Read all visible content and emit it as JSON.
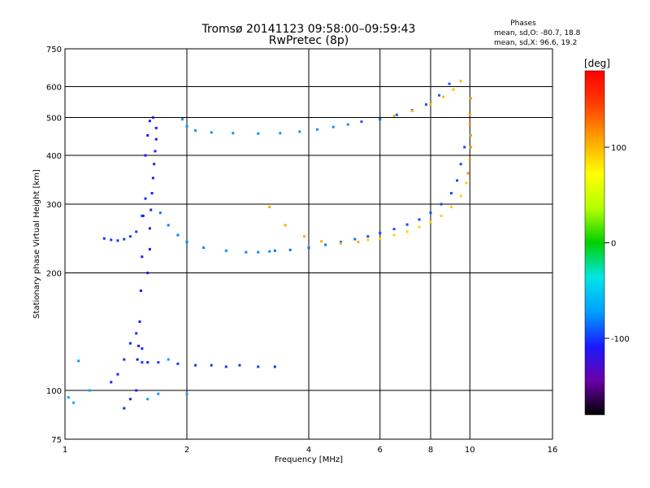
{
  "chart_data": {
    "type": "scatter",
    "title": "Tromsø 20141123 09:58:00–09:59:43",
    "subtitle": "RwPretec (8p)",
    "xlabel": "Frequency [MHz]",
    "ylabel": "Stationary phase Virtual Height [km]",
    "x_scale": "log",
    "y_scale": "log",
    "xlim": [
      1,
      16
    ],
    "ylim": [
      75,
      750
    ],
    "x_ticks": [
      1,
      2,
      4,
      6,
      8,
      10,
      16
    ],
    "y_ticks": [
      75,
      100,
      200,
      300,
      400,
      500,
      600,
      750
    ],
    "grid": true,
    "stats": {
      "header": "Phases",
      "line1": "mean, sd,O: -80.7, 18.8",
      "line2": "mean, sd,X:  96.6, 19.2"
    },
    "colorbar": {
      "label": "[deg]",
      "range": [
        -180,
        180
      ],
      "ticks": [
        100,
        0,
        -100
      ],
      "colors": [
        "#000000",
        "#6a00a8",
        "#1a1aff",
        "#00a0ff",
        "#00e6e6",
        "#00d000",
        "#b4ff00",
        "#ffff00",
        "#ffa500",
        "#ff4000",
        "#ff0000"
      ]
    },
    "series": [
      {
        "phase": -100,
        "x": [
          1.25,
          1.3,
          1.35,
          1.4,
          1.45,
          1.5,
          1.55,
          1.58
        ],
        "y": [
          245,
          243,
          242,
          244,
          248,
          255,
          280,
          310
        ]
      },
      {
        "phase": -110,
        "x": [
          1.6,
          1.62,
          1.62,
          1.63,
          1.64,
          1.65,
          1.66,
          1.67,
          1.68,
          1.68,
          1.65,
          1.62,
          1.6,
          1.58,
          1.56,
          1.55,
          1.54,
          1.53,
          1.52,
          1.51
        ],
        "y": [
          200,
          230,
          260,
          290,
          320,
          350,
          380,
          410,
          440,
          470,
          500,
          490,
          450,
          400,
          280,
          220,
          180,
          150,
          130,
          120
        ]
      },
      {
        "phase": -80,
        "x": [
          1.72,
          1.8,
          1.9,
          2.0,
          2.2,
          2.5,
          2.8,
          3.0,
          3.2
        ],
        "y": [
          285,
          265,
          250,
          240,
          232,
          228,
          226,
          226,
          227
        ]
      },
      {
        "phase": -85,
        "x": [
          3.3,
          3.6,
          4.0,
          4.4,
          4.8,
          5.2
        ],
        "y": [
          228,
          229,
          232,
          236,
          240,
          244
        ]
      },
      {
        "phase": -95,
        "x": [
          5.6,
          6.0,
          6.5,
          7.0,
          7.5,
          8.0,
          8.5,
          9.0,
          9.3,
          9.5,
          9.7
        ],
        "y": [
          248,
          253,
          259,
          266,
          274,
          285,
          300,
          320,
          345,
          380,
          420
        ]
      },
      {
        "phase": -75,
        "x": [
          1.95,
          2.0,
          2.1,
          2.3,
          2.6,
          3.0,
          3.4,
          3.8,
          4.2,
          4.6,
          5.0
        ],
        "y": [
          495,
          475,
          463,
          458,
          456,
          455,
          456,
          460,
          466,
          473,
          480
        ]
      },
      {
        "phase": -90,
        "x": [
          5.4,
          6.0,
          6.6,
          7.2,
          7.8,
          8.4,
          8.9
        ],
        "y": [
          488,
          495,
          508,
          522,
          540,
          570,
          610
        ]
      },
      {
        "phase": 105,
        "x": [
          3.2,
          3.5,
          3.9,
          4.3,
          4.8,
          5.3
        ],
        "y": [
          295,
          265,
          248,
          241,
          238,
          240
        ]
      },
      {
        "phase": 90,
        "x": [
          5.6,
          6.0,
          6.5,
          7.0,
          7.5,
          8.0,
          8.5,
          9.0,
          9.5,
          9.8
        ],
        "y": [
          243,
          245,
          250,
          255,
          262,
          270,
          280,
          295,
          315,
          340
        ]
      },
      {
        "phase": 115,
        "x": [
          9.9,
          10.0,
          10.05,
          10.05,
          10.0,
          10.0,
          10.05
        ],
        "y": [
          360,
          390,
          420,
          450,
          480,
          510,
          560
        ]
      },
      {
        "phase": 100,
        "x": [
          6.5,
          7.2,
          8.0,
          8.6,
          9.1,
          9.5
        ],
        "y": [
          505,
          520,
          540,
          565,
          590,
          620
        ]
      },
      {
        "phase": -100,
        "x": [
          1.55,
          1.7,
          1.9,
          2.1,
          2.3,
          2.5,
          2.7,
          3.0,
          3.3
        ],
        "y": [
          118,
          118,
          117,
          116,
          116,
          115,
          116,
          115,
          115
        ]
      },
      {
        "phase": -105,
        "x": [
          1.3,
          1.35,
          1.4,
          1.45,
          1.5,
          1.55,
          1.6,
          1.5,
          1.45,
          1.4
        ],
        "y": [
          105,
          110,
          120,
          132,
          140,
          128,
          118,
          100,
          95,
          90
        ]
      },
      {
        "phase": -70,
        "x": [
          1.02,
          1.05,
          1.08,
          1.15,
          1.6,
          1.7,
          1.8,
          2.0
        ],
        "y": [
          96,
          93,
          119,
          100,
          95,
          98,
          120,
          98
        ]
      }
    ]
  }
}
